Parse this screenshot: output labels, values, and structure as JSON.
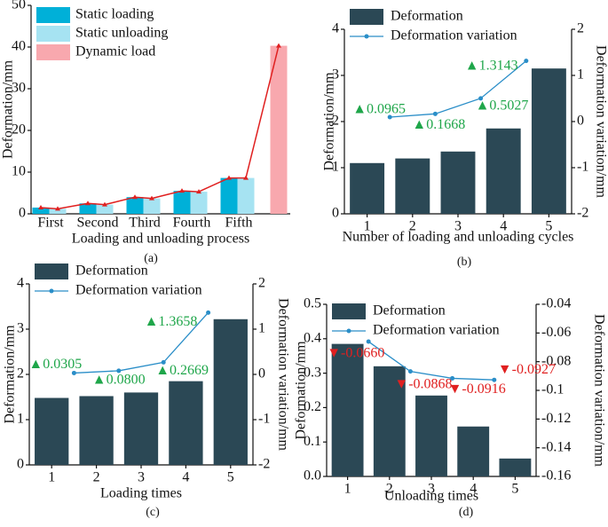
{
  "chart_data": [
    {
      "type": "bar",
      "caption": "(a)",
      "ylabel": "Deformation/mm",
      "xlabel": "Loading and unloading process",
      "categories": [
        "First",
        "Second",
        "Third",
        "Fourth",
        "Fifth",
        null
      ],
      "series": [
        {
          "name": "Static loading",
          "color": "#00b0d8",
          "values": [
            1.5,
            2.5,
            4.0,
            5.5,
            8.6,
            null
          ]
        },
        {
          "name": "Static unloading",
          "color": "#a6e3f2",
          "values": [
            1.2,
            2.2,
            3.7,
            5.3,
            8.6,
            null
          ]
        },
        {
          "name": "Dynamic load",
          "color": "#f8a8ae",
          "values": [
            null,
            null,
            null,
            null,
            null,
            40.3
          ]
        }
      ],
      "line_color": "#e02020",
      "ylim": [
        0,
        50
      ],
      "yticks": [
        0,
        10,
        20,
        30,
        40,
        50
      ]
    },
    {
      "type": "combo",
      "caption": "(b)",
      "ylabel": "Deformation/mm",
      "y2label": "Deformation variation/mm",
      "xlabel": "Number of loading and unloading cycles",
      "categories": [
        "1",
        "2",
        "3",
        "4",
        "5"
      ],
      "series": [
        {
          "name": "Deformation",
          "color": "#2b4855",
          "values": [
            1.1,
            1.2,
            1.35,
            1.85,
            3.15
          ]
        },
        {
          "name": "Deformation variation",
          "color": "#2a8ec8",
          "axis": "y2",
          "x": [
            1.5,
            2.5,
            3.5,
            4.5
          ],
          "values": [
            0.0965,
            0.1668,
            0.5027,
            1.3143
          ],
          "value_labels": [
            "▲0.0965",
            "▲0.1668",
            "▲0.5027",
            "▲1.3143"
          ],
          "label_color": "#1fa64a"
        }
      ],
      "ylim": [
        0,
        4
      ],
      "yticks": [
        0,
        1,
        2,
        3,
        4
      ],
      "y2lim": [
        -2,
        2
      ],
      "y2ticks": [
        -2,
        -1,
        0,
        1,
        2
      ]
    },
    {
      "type": "combo",
      "caption": "(c)",
      "ylabel": "Deformation/mm",
      "y2label": "Deformation variation/mm",
      "xlabel": "Loading times",
      "categories": [
        "1",
        "2",
        "3",
        "4",
        "5"
      ],
      "series": [
        {
          "name": "Deformation",
          "color": "#2b4855",
          "values": [
            1.48,
            1.52,
            1.6,
            1.85,
            3.22
          ]
        },
        {
          "name": "Deformation variation",
          "color": "#2a8ec8",
          "axis": "y2",
          "x": [
            1.5,
            2.5,
            3.5,
            4.5
          ],
          "values": [
            0.0305,
            0.08,
            0.2669,
            1.3658
          ],
          "value_labels": [
            "▲0.0305",
            "▲0.0800",
            "▲0.2669",
            "▲1.3658"
          ],
          "label_color": "#1fa64a"
        }
      ],
      "ylim": [
        0,
        4
      ],
      "yticks": [
        0,
        1,
        2,
        3,
        4
      ],
      "y2lim": [
        -2,
        2
      ],
      "y2ticks": [
        -2,
        -1,
        0,
        1,
        2
      ]
    },
    {
      "type": "combo",
      "caption": "(d)",
      "ylabel": "Deformation/mm",
      "y2label": "Deformation variation/mm",
      "xlabel": "Unloading times",
      "categories": [
        "1",
        "2",
        "3",
        "4",
        "5"
      ],
      "series": [
        {
          "name": "Deformation",
          "color": "#2b4855",
          "values": [
            0.385,
            0.32,
            0.235,
            0.145,
            0.052
          ]
        },
        {
          "name": "Deformation variation",
          "color": "#2a8ec8",
          "axis": "y2",
          "x": [
            1.5,
            2.5,
            3.5,
            4.5
          ],
          "values": [
            -0.066,
            -0.0868,
            -0.0916,
            -0.0927
          ],
          "value_labels": [
            "▼-0.0660",
            "▼-0.0868",
            "▼-0.0916",
            "▼-0.0927"
          ],
          "label_color": "#e02020"
        }
      ],
      "ylim": [
        0,
        0.5
      ],
      "yticks": [
        {
          "value": 0,
          "label": "0.0"
        },
        0.1,
        0.2,
        0.3,
        0.4,
        0.5
      ],
      "y2lim": [
        -0.16,
        -0.04
      ],
      "y2ticks": [
        -0.16,
        -0.14,
        -0.12,
        -0.1,
        -0.08,
        -0.06,
        -0.04
      ]
    }
  ]
}
